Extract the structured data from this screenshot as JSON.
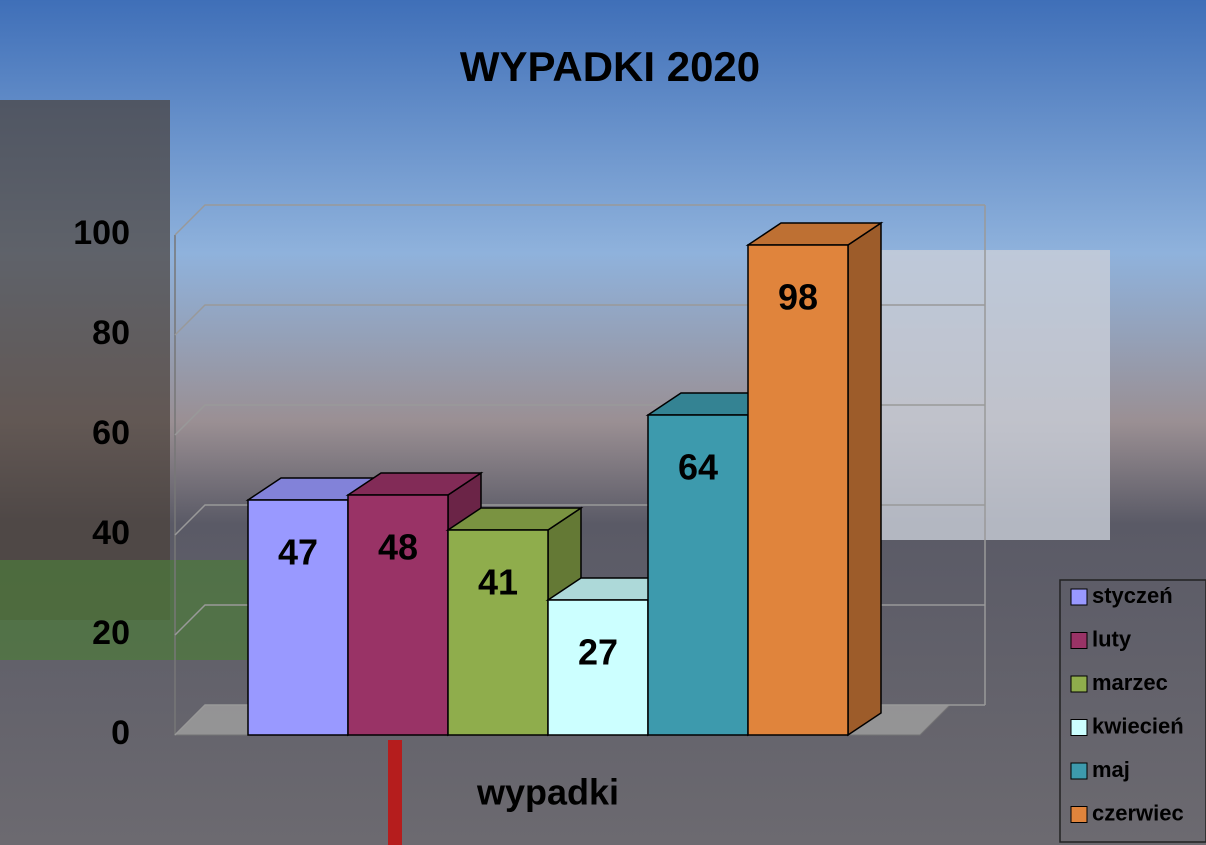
{
  "chart_data": {
    "type": "bar3d",
    "title": "WYPADKI 2020",
    "categories": [
      "wypadki"
    ],
    "series": [
      {
        "name": "styczeń",
        "color": "#9999ff",
        "values": [
          47
        ]
      },
      {
        "name": "luty",
        "color": "#993366",
        "values": [
          48
        ]
      },
      {
        "name": "marzec",
        "color": "#8fad4c",
        "values": [
          41
        ]
      },
      {
        "name": "kwiecień",
        "color": "#ccffff",
        "values": [
          27
        ]
      },
      {
        "name": "maj",
        "color": "#3d9aad",
        "values": [
          64
        ]
      },
      {
        "name": "czerwiec",
        "color": "#e0843c",
        "values": [
          98
        ]
      }
    ],
    "ylim": [
      0,
      100
    ],
    "yticks": [
      0,
      20,
      40,
      60,
      80,
      100
    ],
    "grid": true,
    "legend": "right"
  }
}
